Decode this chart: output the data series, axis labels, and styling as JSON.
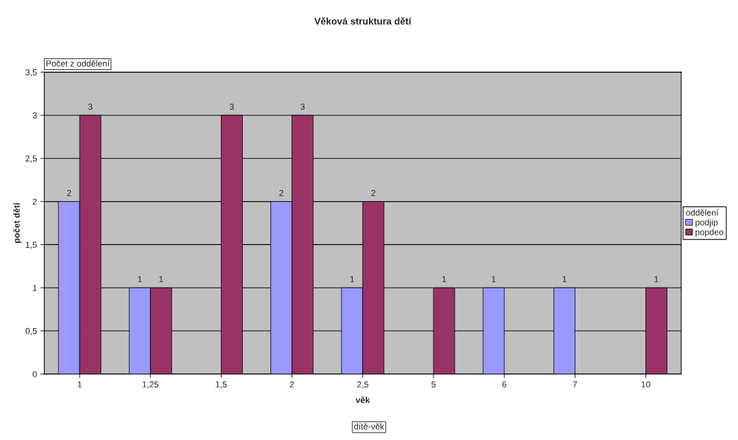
{
  "chart_data": {
    "type": "bar",
    "title": "Věková struktura dětí",
    "xlabel": "věk",
    "ylabel": "počet dětí",
    "legend_title": "oddělení",
    "categories": [
      "1",
      "1,25",
      "1,5",
      "2",
      "2,5",
      "5",
      "6",
      "7",
      "10"
    ],
    "series": [
      {
        "name": "podjip",
        "color": "#9999ff",
        "values": [
          2,
          1,
          null,
          2,
          1,
          null,
          1,
          1,
          null
        ]
      },
      {
        "name": "popdeo",
        "color": "#993366",
        "values": [
          3,
          1,
          3,
          3,
          2,
          1,
          null,
          null,
          1
        ]
      }
    ],
    "ylim": [
      0,
      3.5
    ],
    "yticks": [
      0,
      {
        "value": 0.5,
        "label": "0,5"
      },
      1,
      {
        "value": 1.5,
        "label": "1,5"
      },
      2,
      {
        "value": 2.5,
        "label": "2,5"
      },
      3,
      {
        "value": 3.5,
        "label": "3,5"
      }
    ],
    "grid": "y",
    "legend": "right",
    "data_labels": true,
    "annotations": [
      "Počet z oddělení",
      "dítě-věk"
    ]
  }
}
